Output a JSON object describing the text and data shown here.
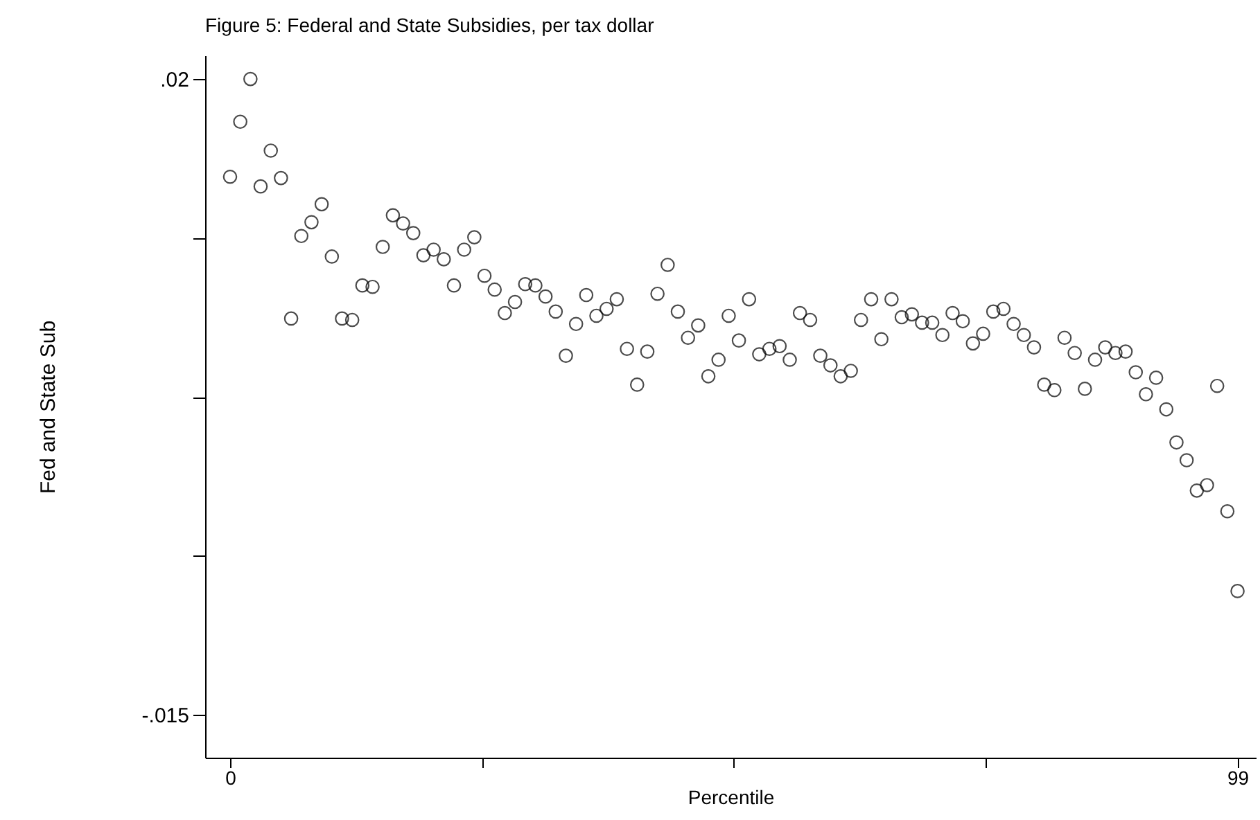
{
  "chart_data": {
    "type": "scatter",
    "title": "Figure 5: Federal and State Subsidies, per tax dollar",
    "xlabel": "Percentile",
    "ylabel": "Fed and State Sub",
    "x": [
      0,
      1,
      2,
      3,
      4,
      5,
      6,
      7,
      8,
      9,
      10,
      11,
      12,
      13,
      14,
      15,
      16,
      17,
      18,
      19,
      20,
      21,
      22,
      23,
      24,
      25,
      26,
      27,
      28,
      29,
      30,
      31,
      32,
      33,
      34,
      35,
      36,
      37,
      38,
      39,
      40,
      41,
      42,
      43,
      44,
      45,
      46,
      47,
      48,
      49,
      50,
      51,
      52,
      53,
      54,
      55,
      56,
      57,
      58,
      59,
      60,
      61,
      62,
      63,
      64,
      65,
      66,
      67,
      68,
      69,
      70,
      71,
      72,
      73,
      74,
      75,
      76,
      77,
      78,
      79,
      80,
      81,
      82,
      83,
      84,
      85,
      86,
      87,
      88,
      89,
      90,
      91,
      92,
      93,
      94,
      95,
      96,
      97,
      98,
      99
    ],
    "series": [
      {
        "color": "#000000",
        "values": [
          0.01462,
          0.01765,
          0.02,
          0.01409,
          0.01606,
          0.01455,
          0.00682,
          0.01136,
          0.01212,
          0.01311,
          0.01023,
          0.00682,
          0.00674,
          0.00864,
          0.00856,
          0.01076,
          0.0125,
          0.01205,
          0.01152,
          0.0103,
          0.01061,
          0.01008,
          0.00864,
          0.01061,
          0.01129,
          0.00917,
          0.00841,
          0.00712,
          0.00773,
          0.00871,
          0.00864,
          0.00803,
          0.0072,
          0.00477,
          0.00652,
          0.00811,
          0.00697,
          0.00735,
          0.00788,
          0.00515,
          0.00318,
          0.005,
          0.00818,
          0.00977,
          0.0072,
          0.00576,
          0.00644,
          0.00364,
          0.00455,
          0.00697,
          0.00561,
          0.00788,
          0.00485,
          0.00515,
          0.0053,
          0.00455,
          0.00712,
          0.00674,
          0.00477,
          0.00424,
          0.00364,
          0.00394,
          0.00674,
          0.00788,
          0.00568,
          0.00788,
          0.00689,
          0.00705,
          0.00659,
          0.00659,
          0.00591,
          0.00712,
          0.00667,
          0.00545,
          0.00598,
          0.0072,
          0.00735,
          0.00652,
          0.00591,
          0.00523,
          0.00318,
          0.00288,
          0.00576,
          0.00492,
          0.00295,
          0.00455,
          0.00523,
          0.00492,
          0.005,
          0.00386,
          0.00265,
          0.00356,
          0.00182,
          0.0,
          -0.00098,
          -0.00265,
          -0.00235,
          0.00311,
          -0.00379,
          -0.00818
        ]
      }
    ],
    "xlim": [
      -2.45,
      100.8
    ],
    "xticks": [
      0,
      {
        "value": 24.75,
        "label": null
      },
      {
        "value": 49.5,
        "label": null
      },
      {
        "value": 74.25,
        "label": null
      },
      99
    ],
    "ylim": [
      -0.01735,
      0.0213
    ],
    "yticks": [
      {
        "value": 0.02,
        "label": ".02"
      },
      {
        "value": 0.01125,
        "label": null
      },
      {
        "value": 0.0025,
        "label": null
      },
      {
        "value": -0.00625,
        "label": null
      },
      {
        "value": -0.015,
        "label": "-.015"
      }
    ],
    "grid": false,
    "legend": false,
    "marker": "circle"
  }
}
